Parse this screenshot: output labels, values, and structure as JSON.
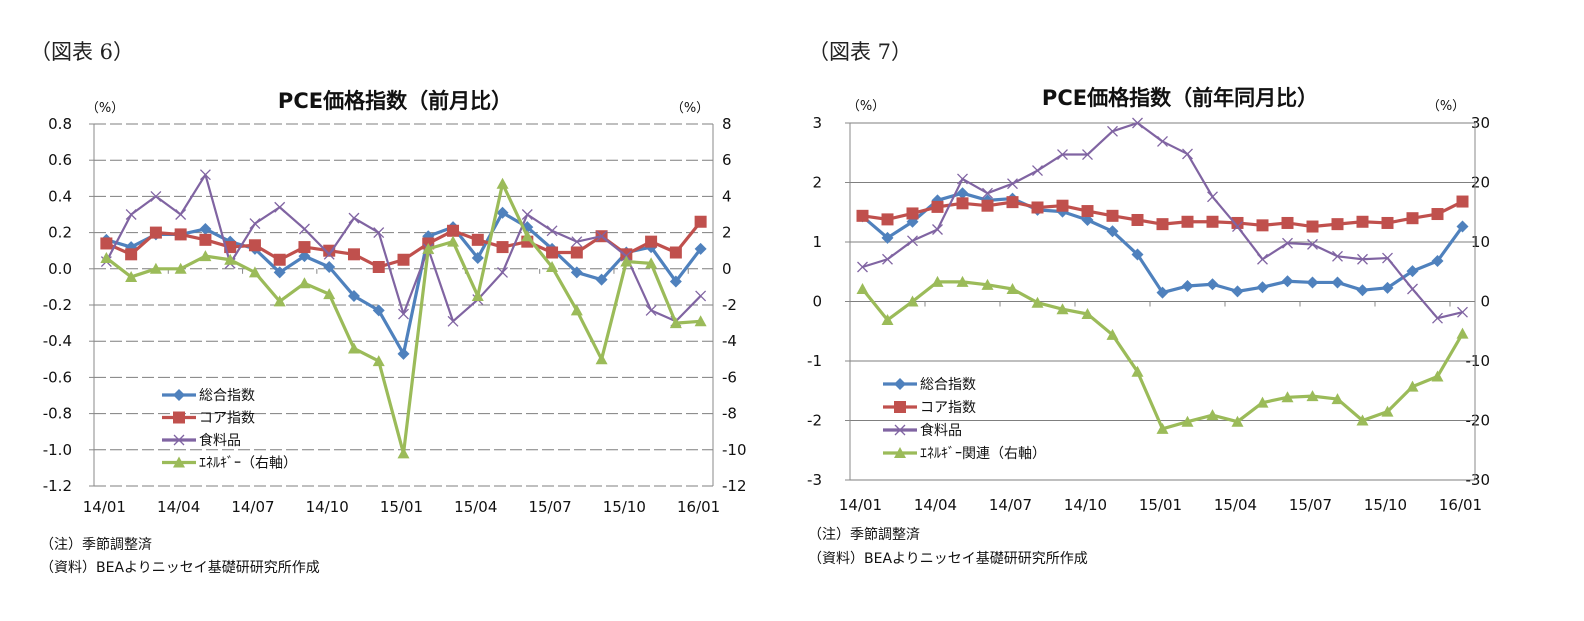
{
  "figures": [
    {
      "label": "（図表 6）",
      "note1": "（注）季節調整済",
      "note2": "（資料）BEAよりニッセイ基礎研研究所作成"
    },
    {
      "label": "（図表 7）",
      "note1": "（注）季節調整済",
      "note2": "（資料）BEAよりニッセイ基礎研研究所作成"
    }
  ],
  "colors": {
    "total": "#4F81BD",
    "core": "#C0504D",
    "food": "#8064A2",
    "energy": "#9BBB59"
  },
  "chart_data": [
    {
      "type": "line",
      "title": "PCE価格指数（前月比）",
      "left_unit": "（%）",
      "right_unit": "（%）",
      "categories": [
        "14/01",
        "14/02",
        "14/03",
        "14/04",
        "14/05",
        "14/06",
        "14/07",
        "14/08",
        "14/09",
        "14/10",
        "14/11",
        "14/12",
        "15/01",
        "15/02",
        "15/03",
        "15/04",
        "15/05",
        "15/06",
        "15/07",
        "15/08",
        "15/09",
        "15/10",
        "15/11",
        "15/12",
        "16/01"
      ],
      "tick_labels": [
        "14/01",
        "14/04",
        "14/07",
        "14/10",
        "15/01",
        "15/04",
        "15/07",
        "15/10",
        "16/01"
      ],
      "ylim_left": [
        -1.2,
        0.8
      ],
      "yticks_left": [
        "0.8",
        "0.6",
        "0.4",
        "0.2",
        "0.0",
        "-0.2",
        "-0.4",
        "-0.6",
        "-0.8",
        "-1.0",
        "-1.2"
      ],
      "ylim_right": [
        -12,
        8
      ],
      "yticks_right": [
        "8",
        "6",
        "4",
        "2",
        "0",
        "-2",
        "-4",
        "-6",
        "-8",
        "-10",
        "-12"
      ],
      "grid": true,
      "legend": "bottom-left",
      "series": [
        {
          "name": "総合指数",
          "axis": "left",
          "color_key": "total",
          "marker": "diamond",
          "values": [
            0.16,
            0.12,
            0.19,
            0.19,
            0.22,
            0.15,
            0.11,
            -0.02,
            0.07,
            0.01,
            -0.15,
            -0.23,
            -0.47,
            0.18,
            0.23,
            0.06,
            0.31,
            0.23,
            0.11,
            -0.02,
            -0.06,
            0.09,
            0.12,
            -0.07,
            0.11
          ]
        },
        {
          "name": "コア指数",
          "axis": "left",
          "color_key": "core",
          "marker": "square",
          "values": [
            0.14,
            0.08,
            0.2,
            0.19,
            0.16,
            0.12,
            0.13,
            0.05,
            0.12,
            0.1,
            0.08,
            0.01,
            0.05,
            0.14,
            0.21,
            0.16,
            0.12,
            0.15,
            0.09,
            0.09,
            0.18,
            0.08,
            0.15,
            0.09,
            0.26
          ]
        },
        {
          "name": "食料品",
          "axis": "left",
          "color_key": "food",
          "marker": "x",
          "values": [
            0.04,
            0.3,
            0.4,
            0.3,
            0.52,
            0.03,
            0.25,
            0.34,
            0.22,
            0.08,
            0.28,
            0.2,
            -0.25,
            0.11,
            -0.29,
            -0.17,
            -0.02,
            0.3,
            0.21,
            0.15,
            0.18,
            0.07,
            -0.23,
            -0.29,
            -0.15
          ]
        },
        {
          "name": "ｴﾈﾙｷﾞｰ（右軸）",
          "axis": "right",
          "color_key": "energy",
          "marker": "triangle",
          "values": [
            0.6,
            -0.45,
            0.0,
            0.0,
            0.7,
            0.5,
            -0.2,
            -1.8,
            -0.8,
            -1.4,
            -4.4,
            -5.1,
            -10.2,
            1.1,
            1.5,
            -1.5,
            4.7,
            1.8,
            0.1,
            -2.3,
            -5.0,
            0.4,
            0.3,
            -3.0,
            -2.9
          ]
        }
      ]
    },
    {
      "type": "line",
      "title": "PCE価格指数（前年同月比）",
      "left_unit": "（%）",
      "right_unit": "（%）",
      "categories": [
        "14/01",
        "14/02",
        "14/03",
        "14/04",
        "14/05",
        "14/06",
        "14/07",
        "14/08",
        "14/09",
        "14/10",
        "14/11",
        "14/12",
        "15/01",
        "15/02",
        "15/03",
        "15/04",
        "15/05",
        "15/06",
        "15/07",
        "15/08",
        "15/09",
        "15/10",
        "15/11",
        "15/12",
        "16/01"
      ],
      "tick_labels": [
        "14/01",
        "14/04",
        "14/07",
        "14/10",
        "15/01",
        "15/04",
        "15/07",
        "15/10",
        "16/01"
      ],
      "ylim_left": [
        -3,
        3
      ],
      "yticks_left": [
        "3",
        "2",
        "1",
        "0",
        "-1",
        "-2",
        "-3"
      ],
      "ylim_right": [
        -30,
        30
      ],
      "yticks_right": [
        "30",
        "20",
        "10",
        "0",
        "-10",
        "-20",
        "-30"
      ],
      "grid": true,
      "legend": "bottom-left",
      "series": [
        {
          "name": "総合指数",
          "axis": "left",
          "color_key": "total",
          "marker": "diamond",
          "values": [
            1.43,
            1.07,
            1.34,
            1.7,
            1.82,
            1.7,
            1.73,
            1.54,
            1.51,
            1.37,
            1.18,
            0.79,
            0.15,
            0.26,
            0.29,
            0.17,
            0.24,
            0.34,
            0.32,
            0.32,
            0.19,
            0.23,
            0.51,
            0.68,
            1.26
          ]
        },
        {
          "name": "コア指数",
          "axis": "left",
          "color_key": "core",
          "marker": "square",
          "values": [
            1.44,
            1.38,
            1.48,
            1.59,
            1.65,
            1.61,
            1.67,
            1.58,
            1.61,
            1.52,
            1.44,
            1.37,
            1.3,
            1.34,
            1.34,
            1.32,
            1.28,
            1.32,
            1.26,
            1.3,
            1.34,
            1.32,
            1.4,
            1.47,
            1.68
          ]
        },
        {
          "name": "食料品",
          "axis": "left",
          "color_key": "food",
          "marker": "x",
          "values": [
            0.58,
            0.71,
            1.02,
            1.21,
            2.06,
            1.82,
            1.98,
            2.2,
            2.47,
            2.47,
            2.86,
            3.0,
            2.69,
            2.48,
            1.76,
            1.26,
            0.71,
            0.98,
            0.96,
            0.76,
            0.71,
            0.73,
            0.21,
            -0.28,
            -0.18
          ]
        },
        {
          "name": "ｴﾈﾙｷﾞｰ関連（右軸）",
          "axis": "right",
          "color_key": "energy",
          "marker": "triangle",
          "values": [
            2.1,
            -3.1,
            0.0,
            3.3,
            3.3,
            2.8,
            2.1,
            -0.2,
            -1.3,
            -2.1,
            -5.6,
            -11.8,
            -21.4,
            -20.2,
            -19.1,
            -20.2,
            -17.0,
            -16.1,
            -15.9,
            -16.4,
            -20.0,
            -18.5,
            -14.3,
            -12.6,
            -5.4
          ]
        }
      ]
    }
  ]
}
